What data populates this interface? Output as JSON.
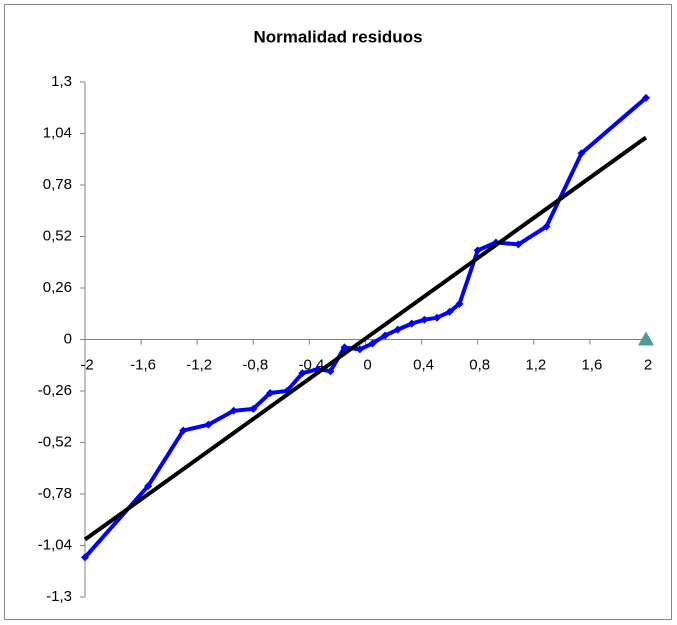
{
  "chart_data": {
    "type": "scatter",
    "title": "Normalidad residuos",
    "xlim": [
      -2,
      2
    ],
    "xticks": [
      -2,
      {
        "value": -1.6,
        "label": "-1,6"
      },
      {
        "value": -1.2,
        "label": "-1,2"
      },
      {
        "value": -0.8,
        "label": "-0,8"
      },
      {
        "value": -0.4,
        "label": "-0,4"
      },
      0,
      {
        "value": 0.4,
        "label": "0,4"
      },
      {
        "value": 0.8,
        "label": "0,8"
      },
      {
        "value": 1.2,
        "label": "1,2"
      },
      {
        "value": 1.6,
        "label": "1,6"
      },
      2
    ],
    "ylim": [
      -1.3,
      1.3
    ],
    "yticks": [
      {
        "value": 1.3,
        "label": "1,3"
      },
      {
        "value": 1.04,
        "label": "1,04"
      },
      {
        "value": 0.78,
        "label": "0,78"
      },
      {
        "value": 0.52,
        "label": "0,52"
      },
      {
        "value": 0.26,
        "label": "0,26"
      },
      0,
      {
        "value": -0.26,
        "label": "-0,26"
      },
      {
        "value": -0.52,
        "label": "-0,52"
      },
      {
        "value": -0.78,
        "label": "-0,78"
      },
      {
        "value": -1.04,
        "label": "-1,04"
      },
      {
        "value": -1.3,
        "label": "-1,3"
      }
    ],
    "grid": false,
    "series": [
      {
        "color": "#0000ff",
        "marker": "diamond",
        "x": [
          -2.0,
          -1.55,
          -1.3,
          -1.12,
          -0.94,
          -0.8,
          -0.68,
          -0.56,
          -0.45,
          -0.34,
          -0.25,
          -0.15,
          -0.04,
          0.05,
          0.14,
          0.23,
          0.33,
          0.42,
          0.51,
          0.6,
          0.67,
          0.8,
          0.93,
          1.09,
          1.29,
          1.54,
          2.0
        ],
        "values": [
          -1.1,
          -0.74,
          -0.46,
          -0.43,
          -0.36,
          -0.35,
          -0.27,
          -0.26,
          -0.17,
          -0.15,
          -0.16,
          -0.04,
          -0.05,
          -0.02,
          0.02,
          0.05,
          0.08,
          0.1,
          0.11,
          0.14,
          0.18,
          0.45,
          0.49,
          0.48,
          0.57,
          0.94,
          1.22
        ]
      },
      {
        "color": "#000000",
        "x": [
          -2,
          2
        ],
        "values": [
          -1.01,
          1.02
        ]
      },
      {
        "color": "#4f9a94",
        "marker": "triangle",
        "x": [
          2
        ],
        "values": [
          0
        ]
      }
    ]
  }
}
